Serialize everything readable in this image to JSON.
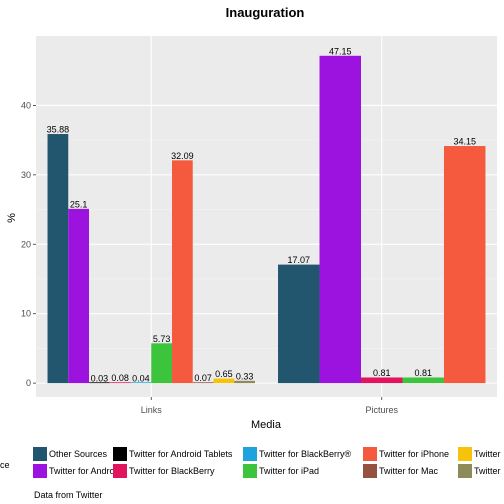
{
  "chart_data": {
    "type": "bar",
    "title": "Inauguration",
    "xlabel": "Media",
    "ylabel": "%",
    "caption": "Data from Twitter",
    "legend_title_fragment": "ce",
    "legend_position": "bottom",
    "grid": true,
    "ylim": [
      -2,
      50
    ],
    "yticks": [
      0,
      10,
      20,
      30,
      40
    ],
    "categories": [
      "Links",
      "Pictures"
    ],
    "series": [
      {
        "name": "Other Sources",
        "color": "#22566f",
        "values": [
          35.88,
          17.07
        ]
      },
      {
        "name": "Twitter for Android",
        "color": "#9c13e0",
        "values": [
          25.1,
          47.15
        ]
      },
      {
        "name": "Twitter for Android Tablets",
        "color": "#000000",
        "values": [
          0.03,
          null
        ]
      },
      {
        "name": "Twitter for BlackBerry",
        "color": "#e0155e",
        "values": [
          0.08,
          0.81
        ]
      },
      {
        "name": "Twitter for BlackBerry®",
        "color": "#1fa3dc",
        "values": [
          0.04,
          null
        ]
      },
      {
        "name": "Twitter for iPad",
        "color": "#3cc43c",
        "values": [
          5.73,
          0.81
        ]
      },
      {
        "name": "Twitter for iPhone",
        "color": "#f55a3e",
        "values": [
          32.09,
          34.15
        ]
      },
      {
        "name": "Twitter for Mac",
        "color": "#955040",
        "values": [
          0.07,
          null
        ]
      },
      {
        "name": "Twitter",
        "color": "#f7c20a",
        "values": [
          0.65,
          null
        ]
      },
      {
        "name": "Twitter",
        "color": "#8f8a5a",
        "values": [
          0.33,
          null
        ]
      }
    ],
    "data_labels": [
      [
        "35.88",
        "25.1",
        "0.03",
        "0.08",
        "0.04",
        "5.73",
        "32.09",
        "0.07",
        "0.65",
        "0.33"
      ],
      [
        "17.07",
        "47.15",
        "",
        "0.81",
        "",
        "0.81",
        "34.15",
        "",
        "",
        ""
      ]
    ]
  }
}
